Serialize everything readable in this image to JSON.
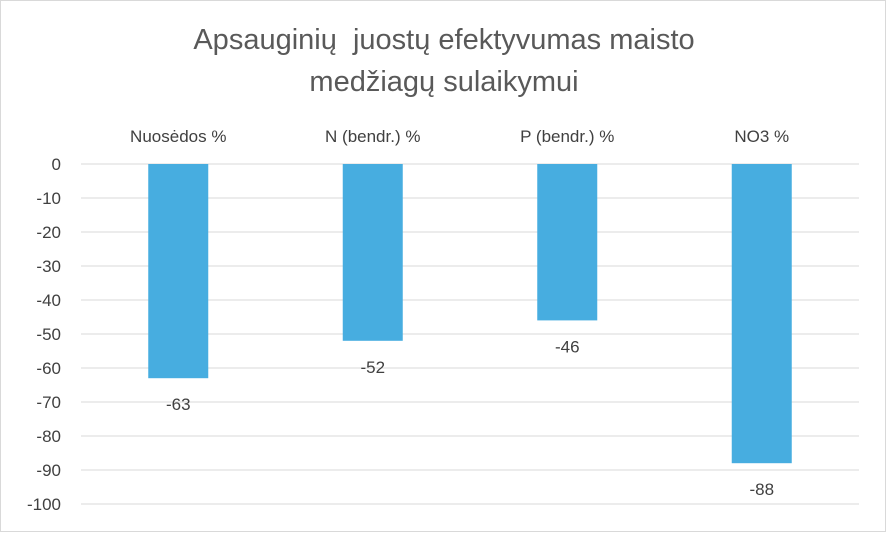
{
  "chart_data": {
    "type": "bar",
    "title_lines": [
      "Apsauginių  juostų efektyvumas maisto",
      "medžiagų sulaikymui"
    ],
    "categories": [
      "Nuosėdos %",
      "N (bendr.) %",
      "P (bendr.) %",
      "NO3 %"
    ],
    "values": [
      -63,
      -52,
      -46,
      -88
    ],
    "data_labels": [
      "-63",
      "-52",
      "-46",
      "-88"
    ],
    "ylim": [
      -100,
      0
    ],
    "yticks": [
      0,
      -10,
      -20,
      -30,
      -40,
      -50,
      -60,
      -70,
      -80,
      -90,
      -100
    ],
    "grid": true,
    "category_labels_position": "top",
    "bar_color": "#47ade0",
    "grid_color": "#d9d9d9",
    "text_color": "#404040",
    "title_color": "#595959"
  }
}
